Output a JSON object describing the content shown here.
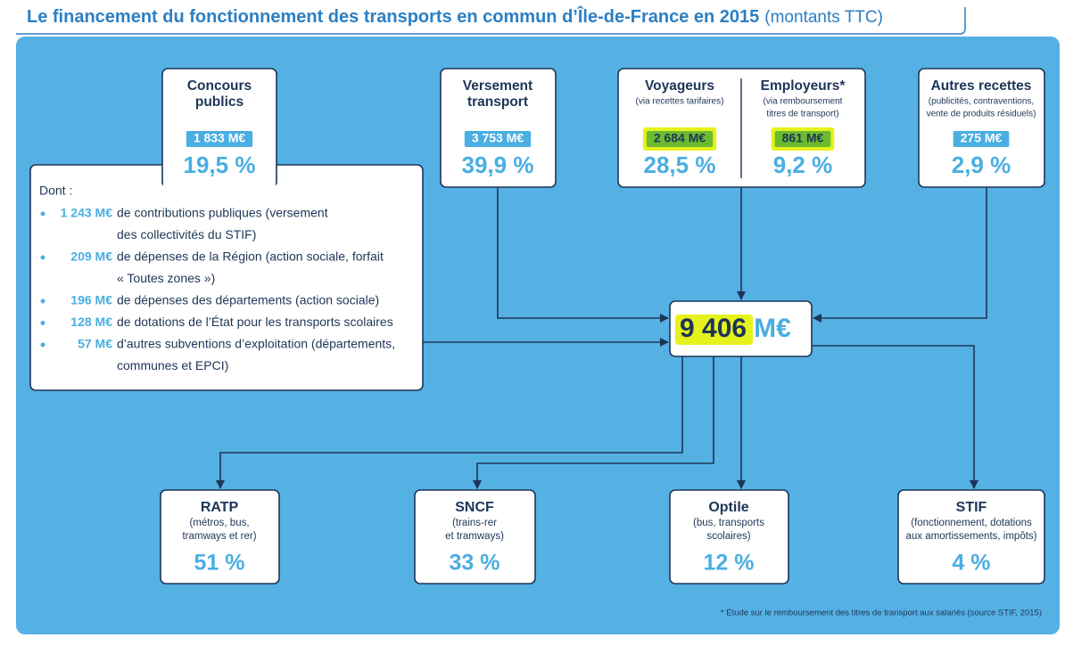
{
  "title": {
    "main": "Le financement du fonctionnement des transports en commun d’Île-de-France en 2015",
    "note": "(montants TTC)"
  },
  "sources": [
    {
      "title": [
        "Concours",
        "publics"
      ],
      "amount": "1 833 M€",
      "share": "19,5 %"
    },
    {
      "title": [
        "Versement",
        "transport"
      ],
      "amount": "3 753 M€",
      "share": "39,9 %"
    },
    {
      "title": [
        "Voyageurs"
      ],
      "subtitle": [
        "(via recettes tarifaires)"
      ],
      "amount": "2 684 M€",
      "share": "28,5 %"
    },
    {
      "title": [
        "Employeurs*"
      ],
      "subtitle": [
        "(via remboursement",
        "titres de transport)"
      ],
      "amount": "861 M€",
      "share": "9,2 %"
    },
    {
      "title": [
        "Autres recettes"
      ],
      "subtitle": [
        "(publicités, contraventions,",
        "vente de produits résiduels)"
      ],
      "amount": "275 M€",
      "share": "2,9 %"
    }
  ],
  "breakdown": {
    "title": "Dont :",
    "items": [
      {
        "amount": "1 243 M€",
        "lines": [
          "de contributions publiques (versement",
          "des collectivités du STIF)"
        ]
      },
      {
        "amount": "209 M€",
        "lines": [
          "de dépenses de la Région (action sociale, forfait",
          "« Toutes zones »)"
        ]
      },
      {
        "amount": "196 M€",
        "lines": [
          "de dépenses des départements (action sociale)"
        ]
      },
      {
        "amount": "128 M€",
        "lines": [
          "de dotations de l’État pour les transports scolaires"
        ]
      },
      {
        "amount": "57 M€",
        "lines": [
          "d’autres subventions d’exploitation (départements,",
          "communes et EPCI)"
        ]
      }
    ]
  },
  "total": {
    "amount": "9 406",
    "unit": "M€"
  },
  "recipients": [
    {
      "name": "RATP",
      "subtitle": [
        "(métros, bus,",
        "tramways et rer)"
      ],
      "share": "51 %"
    },
    {
      "name": "SNCF",
      "subtitle": [
        "(trains-rer",
        "et tramways)"
      ],
      "share": "33 %"
    },
    {
      "name": "Optile",
      "subtitle": [
        "(bus, transports",
        "scolaires)"
      ],
      "share": "12 %"
    },
    {
      "name": "STIF",
      "subtitle": [
        "(fonctionnement, dotations",
        "aux amortissements, impôts)"
      ],
      "share": "4 %"
    }
  ],
  "footnote": "* Étude sur le remboursement des titres de transport aux salariés (source STIF, 2015)"
}
